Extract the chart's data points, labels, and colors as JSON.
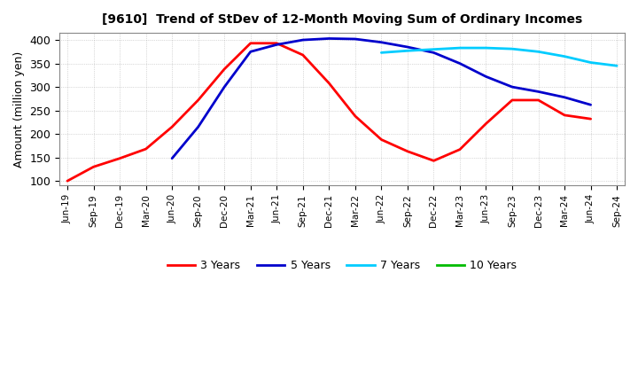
{
  "title": "[9610]  Trend of StDev of 12-Month Moving Sum of Ordinary Incomes",
  "ylabel": "Amount (million yen)",
  "background_color": "#ffffff",
  "plot_bg_color": "#ffffff",
  "grid_color": "#999999",
  "ylim": [
    90,
    415
  ],
  "yticks": [
    100,
    150,
    200,
    250,
    300,
    350,
    400
  ],
  "x_labels": [
    "Jun-19",
    "Sep-19",
    "Dec-19",
    "Mar-20",
    "Jun-20",
    "Sep-20",
    "Dec-20",
    "Mar-21",
    "Jun-21",
    "Sep-21",
    "Dec-21",
    "Mar-22",
    "Jun-22",
    "Sep-22",
    "Dec-22",
    "Mar-23",
    "Jun-23",
    "Sep-23",
    "Dec-23",
    "Mar-24",
    "Jun-24",
    "Sep-24"
  ],
  "series": {
    "3 Years": {
      "color": "#ff0000",
      "linewidth": 2.0,
      "values": [
        100,
        130,
        148,
        168,
        215,
        272,
        338,
        393,
        393,
        368,
        308,
        238,
        188,
        163,
        143,
        167,
        222,
        272,
        272,
        240,
        232,
        null
      ]
    },
    "5 Years": {
      "color": "#0000cc",
      "linewidth": 2.0,
      "values": [
        null,
        null,
        null,
        null,
        148,
        215,
        300,
        375,
        390,
        400,
        403,
        402,
        395,
        385,
        373,
        350,
        322,
        300,
        290,
        278,
        262,
        null
      ]
    },
    "7 Years": {
      "color": "#00ccff",
      "linewidth": 2.0,
      "values": [
        null,
        null,
        null,
        null,
        null,
        null,
        null,
        null,
        null,
        null,
        null,
        null,
        373,
        377,
        380,
        383,
        383,
        381,
        375,
        365,
        352,
        345
      ]
    },
    "10 Years": {
      "color": "#00bb00",
      "linewidth": 2.0,
      "values": [
        null,
        null,
        null,
        null,
        null,
        null,
        null,
        null,
        null,
        null,
        null,
        null,
        null,
        null,
        null,
        null,
        null,
        null,
        null,
        null,
        null,
        null
      ]
    }
  },
  "legend_labels": [
    "3 Years",
    "5 Years",
    "7 Years",
    "10 Years"
  ],
  "legend_colors": [
    "#ff0000",
    "#0000cc",
    "#00ccff",
    "#00bb00"
  ]
}
